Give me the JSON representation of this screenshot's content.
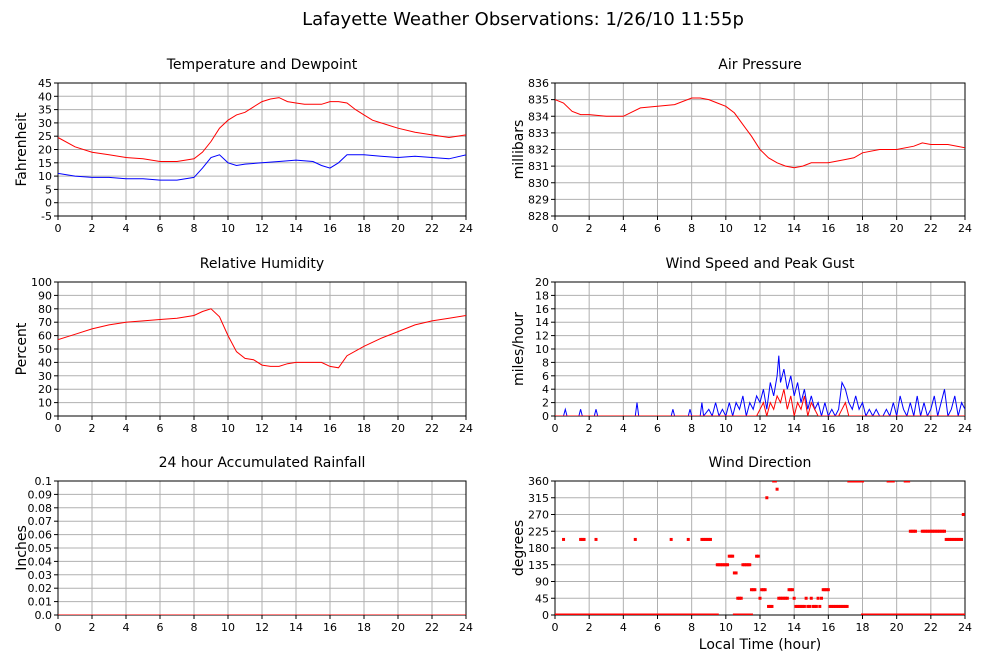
{
  "title": "Lafayette Weather Observations: 1/26/10 11:55p",
  "xlabel_common": "Local Time (hour)",
  "colors": {
    "red": "#ff0000",
    "blue": "#0000ff",
    "grid": "#b0b0b0"
  },
  "chart_data": [
    {
      "id": "temp",
      "type": "line",
      "title": "Temperature and Dewpoint",
      "ylabel": "Fahrenheit",
      "xlim": [
        0,
        24
      ],
      "ylim": [
        -5,
        45
      ],
      "xticks": [
        0,
        2,
        4,
        6,
        8,
        10,
        12,
        14,
        16,
        18,
        20,
        22,
        24
      ],
      "yticks": [
        -5,
        0,
        5,
        10,
        15,
        20,
        25,
        30,
        35,
        40,
        45
      ],
      "series": [
        {
          "color": "#ff0000",
          "x": [
            0,
            1,
            2,
            3,
            4,
            5,
            6,
            7,
            8,
            8.5,
            9,
            9.5,
            10,
            10.5,
            11,
            11.5,
            12,
            12.5,
            13,
            13.5,
            14,
            14.5,
            15,
            15.5,
            16,
            16.5,
            17,
            17.5,
            18,
            18.5,
            19,
            20,
            21,
            22,
            23,
            24
          ],
          "y": [
            24.5,
            21,
            19,
            18,
            17,
            16.5,
            15.5,
            15.5,
            16.5,
            19,
            23,
            28,
            31,
            33,
            34,
            36,
            38,
            39,
            39.5,
            38,
            37.5,
            37,
            37,
            37,
            38,
            38,
            37.5,
            35,
            33,
            31,
            30,
            28,
            26.5,
            25.5,
            24.5,
            25.5
          ]
        },
        {
          "color": "#0000ff",
          "x": [
            0,
            1,
            2,
            3,
            4,
            5,
            6,
            7,
            8,
            8.5,
            9,
            9.5,
            10,
            10.5,
            11,
            12,
            13,
            14,
            15,
            15.5,
            16,
            16.5,
            17,
            18,
            19,
            20,
            21,
            22,
            23,
            24
          ],
          "y": [
            11,
            10,
            9.5,
            9.5,
            9,
            9,
            8.5,
            8.5,
            9.5,
            13,
            17,
            18,
            15,
            14,
            14.5,
            15,
            15.5,
            16,
            15.5,
            14,
            13,
            15,
            18,
            18,
            17.5,
            17,
            17.5,
            17,
            16.5,
            18
          ]
        }
      ]
    },
    {
      "id": "pressure",
      "type": "line",
      "title": "Air Pressure",
      "ylabel": "millibars",
      "xlim": [
        0,
        24
      ],
      "ylim": [
        828,
        836
      ],
      "xticks": [
        0,
        2,
        4,
        6,
        8,
        10,
        12,
        14,
        16,
        18,
        20,
        22,
        24
      ],
      "yticks": [
        828,
        829,
        830,
        831,
        832,
        833,
        834,
        835,
        836
      ],
      "series": [
        {
          "color": "#ff0000",
          "x": [
            0,
            0.5,
            1,
            1.5,
            2,
            3,
            4,
            5,
            6,
            7,
            8,
            8.5,
            9,
            9.5,
            10,
            10.5,
            11,
            11.5,
            12,
            12.5,
            13,
            13.5,
            14,
            14.5,
            15,
            16,
            17,
            17.5,
            18,
            19,
            20,
            21,
            21.5,
            22,
            23,
            24
          ],
          "y": [
            835,
            834.8,
            834.3,
            834.1,
            834.1,
            834,
            834,
            834.5,
            834.6,
            834.7,
            835.1,
            835.1,
            835,
            834.8,
            834.6,
            834.2,
            833.5,
            832.8,
            832,
            831.5,
            831.2,
            831,
            830.9,
            831,
            831.2,
            831.2,
            831.4,
            831.5,
            831.8,
            832,
            832,
            832.2,
            832.4,
            832.3,
            832.3,
            832.1
          ]
        }
      ]
    },
    {
      "id": "humidity",
      "type": "line",
      "title": "Relative Humidity",
      "ylabel": "Percent",
      "xlim": [
        0,
        24
      ],
      "ylim": [
        0,
        100
      ],
      "xticks": [
        0,
        2,
        4,
        6,
        8,
        10,
        12,
        14,
        16,
        18,
        20,
        22,
        24
      ],
      "yticks": [
        0,
        10,
        20,
        30,
        40,
        50,
        60,
        70,
        80,
        90,
        100
      ],
      "series": [
        {
          "color": "#ff0000",
          "x": [
            0,
            1,
            2,
            3,
            4,
            5,
            6,
            7,
            8,
            8.5,
            9,
            9.5,
            10,
            10.5,
            11,
            11.5,
            12,
            12.5,
            13,
            13.5,
            14,
            14.5,
            15,
            15.5,
            16,
            16.5,
            17,
            18,
            19,
            20,
            21,
            22,
            23,
            24
          ],
          "y": [
            57,
            61,
            65,
            68,
            70,
            71,
            72,
            73,
            75,
            78,
            80,
            74,
            60,
            48,
            43,
            42,
            38,
            37,
            37,
            39,
            40,
            40,
            40,
            40,
            37,
            36,
            45,
            52,
            58,
            63,
            68,
            71,
            73,
            75
          ]
        }
      ]
    },
    {
      "id": "wind",
      "type": "line",
      "title": "Wind Speed and Peak Gust",
      "ylabel": "miles/hour",
      "xlim": [
        0,
        24
      ],
      "ylim": [
        0,
        20
      ],
      "xticks": [
        0,
        2,
        4,
        6,
        8,
        10,
        12,
        14,
        16,
        18,
        20,
        22,
        24
      ],
      "yticks": [
        0,
        2,
        4,
        6,
        8,
        10,
        12,
        14,
        16,
        18,
        20
      ],
      "series": [
        {
          "color": "#0000ff",
          "x": [
            0,
            0.5,
            0.6,
            0.7,
            1.4,
            1.5,
            1.6,
            2.3,
            2.4,
            2.5,
            4.7,
            4.8,
            4.9,
            6.8,
            6.9,
            7.0,
            7.8,
            7.9,
            8.0,
            8.5,
            8.6,
            8.7,
            9.0,
            9.2,
            9.4,
            9.6,
            9.8,
            10.0,
            10.2,
            10.4,
            10.6,
            10.8,
            11.0,
            11.2,
            11.4,
            11.6,
            11.8,
            12.0,
            12.2,
            12.4,
            12.6,
            12.8,
            13.0,
            13.1,
            13.2,
            13.4,
            13.6,
            13.8,
            14.0,
            14.2,
            14.4,
            14.6,
            14.8,
            15.0,
            15.2,
            15.4,
            15.6,
            15.8,
            16.0,
            16.2,
            16.4,
            16.6,
            16.8,
            17.0,
            17.2,
            17.4,
            17.6,
            17.8,
            18.0,
            18.2,
            18.4,
            18.6,
            18.8,
            19.0,
            19.2,
            19.4,
            19.6,
            19.8,
            20.0,
            20.2,
            20.4,
            20.6,
            20.8,
            21.0,
            21.2,
            21.4,
            21.6,
            21.8,
            22.0,
            22.2,
            22.4,
            22.6,
            22.8,
            23.0,
            23.2,
            23.4,
            23.6,
            23.8,
            24.0
          ],
          "y": [
            0,
            0,
            1,
            0,
            0,
            1,
            0,
            0,
            1,
            0,
            0,
            2,
            0,
            0,
            1,
            0,
            0,
            1,
            0,
            0,
            2,
            0,
            1,
            0,
            2,
            0,
            1,
            0,
            2,
            0,
            2,
            1,
            3,
            0,
            2,
            1,
            3,
            2,
            4,
            1,
            5,
            3,
            6,
            9,
            5,
            7,
            4,
            6,
            3,
            5,
            2,
            4,
            1,
            3,
            1,
            2,
            0,
            2,
            0,
            1,
            0,
            1,
            5,
            4,
            2,
            1,
            3,
            1,
            2,
            0,
            1,
            0,
            1,
            0,
            0,
            1,
            0,
            2,
            0,
            3,
            1,
            0,
            2,
            0,
            3,
            0,
            2,
            0,
            1,
            3,
            0,
            2,
            4,
            0,
            1,
            3,
            0,
            2,
            1
          ],
          "mode": "spiky"
        },
        {
          "color": "#ff0000",
          "x": [
            0,
            11.8,
            12.0,
            12.2,
            12.4,
            12.6,
            12.8,
            13.0,
            13.2,
            13.4,
            13.6,
            13.8,
            14.0,
            14.2,
            14.4,
            14.6,
            14.8,
            15.0,
            15.2,
            15.4,
            15.6,
            16.6,
            16.8,
            17.0,
            17.2,
            24
          ],
          "y": [
            0,
            0,
            1,
            2,
            0,
            2,
            1,
            3,
            2,
            4,
            1,
            3,
            0,
            2,
            1,
            3,
            0,
            2,
            1,
            0,
            0,
            0,
            1,
            2,
            0,
            0
          ],
          "mode": "spiky"
        }
      ]
    },
    {
      "id": "rain",
      "type": "line",
      "title": "24 hour Accumulated Rainfall",
      "ylabel": "Inches",
      "xlim": [
        0,
        24
      ],
      "ylim": [
        0,
        0.1
      ],
      "xticks": [
        0,
        2,
        4,
        6,
        8,
        10,
        12,
        14,
        16,
        18,
        20,
        22,
        24
      ],
      "yticks": [
        0.0,
        0.01,
        0.02,
        0.03,
        0.04,
        0.05,
        0.06,
        0.07,
        0.08,
        0.09,
        0.1
      ],
      "ytick_labels": [
        "0.0",
        "0.01",
        "0.02",
        "0.03",
        "0.04",
        "0.05",
        "0.06",
        "0.07",
        "0.08",
        "0.09",
        "0.1"
      ],
      "series": [
        {
          "color": "#ff0000",
          "x": [
            0,
            24
          ],
          "y": [
            0,
            0
          ]
        }
      ]
    },
    {
      "id": "direction",
      "type": "scatter",
      "title": "Wind Direction",
      "ylabel": "degrees",
      "xlabel": "Local Time (hour)",
      "xlim": [
        0,
        24
      ],
      "ylim": [
        0,
        360
      ],
      "xticks": [
        0,
        2,
        4,
        6,
        8,
        10,
        12,
        14,
        16,
        18,
        20,
        22,
        24
      ],
      "yticks": [
        0,
        45,
        90,
        135,
        180,
        225,
        270,
        315,
        360
      ],
      "series": [
        {
          "color": "#ff0000",
          "zero_runs": [
            [
              0,
              9.5
            ],
            [
              10.5,
              11.5
            ],
            [
              18.0,
              24.0
            ]
          ],
          "x": [
            0.5,
            1.5,
            1.6,
            1.7,
            2.4,
            4.7,
            6.8,
            7.8,
            8.6,
            8.7,
            8.8,
            8.9,
            9.0,
            9.1,
            9.5,
            9.6,
            9.7,
            9.8,
            9.9,
            10.0,
            10.1,
            10.2,
            10.3,
            10.4,
            10.5,
            10.6,
            10.7,
            10.8,
            10.9,
            11.0,
            11.1,
            11.2,
            11.3,
            11.4,
            11.5,
            11.6,
            11.7,
            11.8,
            11.9,
            12.0,
            12.1,
            12.2,
            12.3,
            12.4,
            12.5,
            12.6,
            12.7,
            12.8,
            12.9,
            13.0,
            13.1,
            13.2,
            13.3,
            13.4,
            13.5,
            13.6,
            13.7,
            13.8,
            13.9,
            14.0,
            14.1,
            14.2,
            14.3,
            14.4,
            14.5,
            14.6,
            14.7,
            14.8,
            14.9,
            15.0,
            15.1,
            15.2,
            15.3,
            15.4,
            15.5,
            15.6,
            15.7,
            15.8,
            15.9,
            16.0,
            16.1,
            16.2,
            16.3,
            16.4,
            16.5,
            16.6,
            16.7,
            16.8,
            16.9,
            17.0,
            17.1,
            17.2,
            17.3,
            17.4,
            17.5,
            17.6,
            17.7,
            17.8,
            17.9,
            18.0,
            19.5,
            19.6,
            19.7,
            19.8,
            20.5,
            20.6,
            20.7,
            20.8,
            20.9,
            21.0,
            21.1,
            21.5,
            21.6,
            21.7,
            21.8,
            21.9,
            22.0,
            22.1,
            22.2,
            22.3,
            22.4,
            22.5,
            22.6,
            22.7,
            22.8,
            22.9,
            23.0,
            23.1,
            23.2,
            23.3,
            23.4,
            23.5,
            23.6,
            23.7,
            23.8,
            23.9
          ],
          "y": [
            203,
            203,
            203,
            203,
            203,
            203,
            203,
            203,
            203,
            203,
            203,
            203,
            203,
            203,
            135,
            135,
            135,
            135,
            135,
            135,
            135,
            158,
            158,
            158,
            113,
            113,
            45,
            45,
            45,
            135,
            135,
            135,
            135,
            135,
            68,
            68,
            68,
            158,
            158,
            45,
            68,
            68,
            68,
            315,
            23,
            23,
            23,
            360,
            360,
            338,
            45,
            45,
            45,
            45,
            45,
            45,
            68,
            68,
            68,
            45,
            23,
            23,
            23,
            23,
            23,
            23,
            45,
            23,
            23,
            45,
            23,
            23,
            23,
            45,
            23,
            45,
            68,
            68,
            68,
            68,
            23,
            23,
            23,
            23,
            23,
            23,
            23,
            23,
            23,
            23,
            23,
            360,
            360,
            360,
            360,
            360,
            360,
            360,
            360,
            360,
            360,
            360,
            360,
            360,
            360,
            360,
            360,
            225,
            225,
            225,
            225,
            225,
            225,
            225,
            225,
            225,
            225,
            225,
            225,
            225,
            225,
            225,
            225,
            225,
            225,
            203,
            203,
            203,
            203,
            203,
            203,
            203,
            203,
            203,
            203,
            270
          ]
        }
      ]
    }
  ]
}
